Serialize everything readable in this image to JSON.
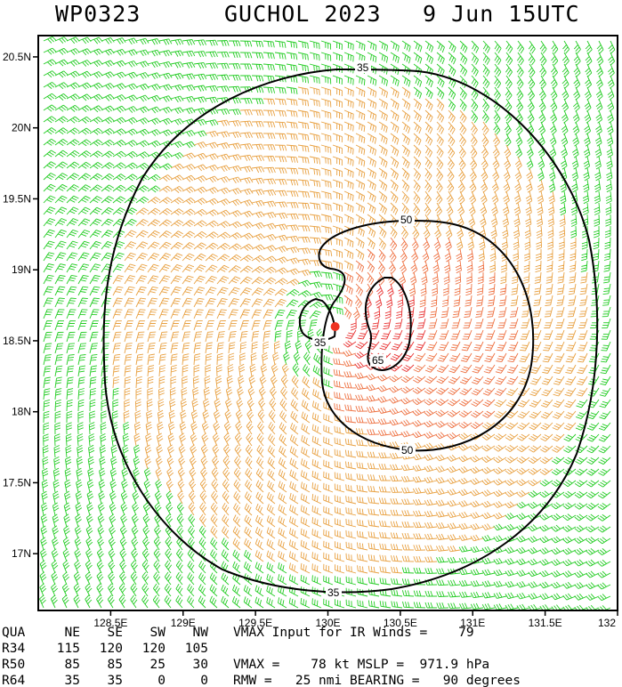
{
  "header": {
    "storm_id": "WP0323",
    "storm_name": "GUCHOL 2023",
    "datetime": "9 Jun 15UTC"
  },
  "map": {
    "lat_range": [
      16.6,
      20.65
    ],
    "lon_range": [
      128.0,
      132.0
    ],
    "y_ticks": [
      "20.5N",
      "20N",
      "19.5N",
      "19N",
      "18.5N",
      "18N",
      "17.5N",
      "17N"
    ],
    "y_tick_values": [
      20.5,
      20.0,
      19.5,
      19.0,
      18.5,
      18.0,
      17.5,
      17.0
    ],
    "x_ticks": [
      "128.5E",
      "129E",
      "129.5E",
      "130E",
      "130.5E",
      "131E",
      "131.5E",
      "132"
    ],
    "x_tick_values": [
      128.5,
      129.0,
      129.5,
      130.0,
      130.5,
      131.0,
      131.5,
      132.0
    ],
    "storm_center": {
      "lon": 130.05,
      "lat": 18.6
    },
    "contour_labels": {
      "outer_top": "35",
      "outer_bottom": "35",
      "inner": "35",
      "r50_top": "50",
      "r50_bottom": "50",
      "r64": "65"
    },
    "colors": {
      "gale": "#22cc22",
      "storm": "#e8a040",
      "strong": "#ee7040",
      "hurricane": "#e83030",
      "center": "#ee3322",
      "contour": "#000000"
    }
  },
  "table": {
    "headers": [
      "QUA",
      "NE",
      "SE",
      "SW",
      "NW"
    ],
    "rows": [
      {
        "label": "R34",
        "values": [
          "115",
          "120",
          "120",
          "105"
        ]
      },
      {
        "label": "R50",
        "values": [
          "85",
          "85",
          "25",
          "30"
        ]
      },
      {
        "label": "R64",
        "values": [
          "35",
          "35",
          "0",
          "0"
        ]
      }
    ],
    "info": [
      "VMAX Input for IR Winds =    79",
      "",
      "VMAX =    78 kt MSLP =  971.9 hPa",
      "RMW =   25 nmi BEARING =   90 degrees"
    ]
  }
}
